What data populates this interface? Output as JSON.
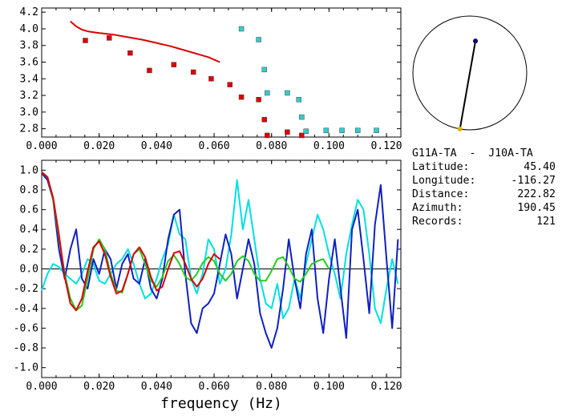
{
  "chart_data": [
    {
      "type": "scatter",
      "xlim": [
        0.0,
        0.125
      ],
      "ylim": [
        2.7,
        4.25
      ],
      "xticks": [
        "0.000",
        "0.020",
        "0.040",
        "0.060",
        "0.080",
        "0.100",
        "0.120"
      ],
      "yticks": [
        "2.8",
        "3.0",
        "3.2",
        "3.4",
        "3.6",
        "3.8",
        "4.0",
        "4.2"
      ],
      "series": [
        {
          "kind": "line",
          "color": "#dd0000",
          "x": [
            0.01,
            0.012,
            0.014,
            0.016,
            0.02,
            0.025,
            0.03,
            0.035,
            0.04,
            0.045,
            0.05,
            0.055,
            0.058,
            0.06,
            0.062
          ],
          "y": [
            4.09,
            4.03,
            3.99,
            3.97,
            3.95,
            3.93,
            3.9,
            3.87,
            3.83,
            3.79,
            3.74,
            3.69,
            3.66,
            3.63,
            3.6
          ]
        },
        {
          "kind": "points",
          "color": "#dd0000",
          "x": [
            0.0152,
            0.0235,
            0.0308,
            0.0375,
            0.046,
            0.0528,
            0.059,
            0.0655,
            0.0695,
            0.0755,
            0.0775,
            0.0785,
            0.0855,
            0.0905
          ],
          "y": [
            3.86,
            3.89,
            3.71,
            3.5,
            3.57,
            3.48,
            3.4,
            3.33,
            3.18,
            3.15,
            2.91,
            2.72,
            2.76,
            2.72
          ]
        },
        {
          "kind": "points",
          "color": "#33cccc",
          "x": [
            0.0695,
            0.0755,
            0.0775,
            0.0785,
            0.0855,
            0.0895,
            0.0905,
            0.092,
            0.099,
            0.1045,
            0.11,
            0.1165
          ],
          "y": [
            4.0,
            3.87,
            3.51,
            3.23,
            3.23,
            3.15,
            2.94,
            2.77,
            2.78,
            2.78,
            2.78,
            2.78
          ]
        }
      ]
    },
    {
      "type": "line",
      "xlim": [
        0.0,
        0.125
      ],
      "ylim": [
        -1.1,
        1.1
      ],
      "xlabel": "frequency (Hz)",
      "xticks": [
        "0.000",
        "0.020",
        "0.040",
        "0.060",
        "0.080",
        "0.100",
        "0.120"
      ],
      "yticks": [
        "1.0",
        "0.8",
        "0.6",
        "0.4",
        "0.2",
        "0.0",
        "-0.2",
        "-0.4",
        "-0.6",
        "-0.8",
        "-1.0"
      ],
      "series": [
        {
          "color": "#00e0e0",
          "x": [
            0.0,
            0.002,
            0.004,
            0.006,
            0.008,
            0.01,
            0.012,
            0.014,
            0.016,
            0.018,
            0.02,
            0.022,
            0.024,
            0.026,
            0.028,
            0.03,
            0.032,
            0.034,
            0.036,
            0.038,
            0.04,
            0.042,
            0.044,
            0.046,
            0.048,
            0.05,
            0.052,
            0.054,
            0.056,
            0.058,
            0.06,
            0.062,
            0.064,
            0.066,
            0.068,
            0.07,
            0.072,
            0.074,
            0.076,
            0.078,
            0.08,
            0.082,
            0.084,
            0.086,
            0.088,
            0.09,
            0.092,
            0.094,
            0.096,
            0.098,
            0.1,
            0.102,
            0.104,
            0.106,
            0.108,
            0.11,
            0.112,
            0.114,
            0.116,
            0.118,
            0.12,
            0.122,
            0.124
          ],
          "y": [
            -0.22,
            -0.05,
            0.05,
            0.02,
            -0.05,
            -0.1,
            -0.15,
            -0.05,
            0.1,
            0.05,
            -0.12,
            -0.15,
            -0.05,
            0.05,
            0.1,
            0.2,
            0.05,
            -0.15,
            -0.3,
            -0.25,
            -0.1,
            0.1,
            0.25,
            0.55,
            0.35,
            0.3,
            -0.1,
            -0.25,
            -0.05,
            0.3,
            0.2,
            -0.15,
            0.0,
            0.35,
            0.9,
            0.4,
            0.7,
            0.3,
            -0.1,
            -0.35,
            -0.4,
            -0.15,
            -0.5,
            -0.4,
            -0.1,
            -0.3,
            0.05,
            0.3,
            0.55,
            0.4,
            0.15,
            -0.05,
            -0.3,
            0.15,
            0.45,
            0.7,
            0.6,
            0.15,
            -0.4,
            -0.55,
            -0.2,
            0.1,
            -0.15
          ]
        },
        {
          "color": "#1020c0",
          "x": [
            0.0,
            0.002,
            0.004,
            0.006,
            0.008,
            0.01,
            0.012,
            0.014,
            0.016,
            0.018,
            0.02,
            0.022,
            0.024,
            0.026,
            0.028,
            0.03,
            0.032,
            0.034,
            0.036,
            0.038,
            0.04,
            0.042,
            0.044,
            0.046,
            0.048,
            0.05,
            0.052,
            0.054,
            0.056,
            0.058,
            0.06,
            0.062,
            0.064,
            0.066,
            0.068,
            0.07,
            0.072,
            0.074,
            0.076,
            0.078,
            0.08,
            0.082,
            0.084,
            0.086,
            0.088,
            0.09,
            0.092,
            0.094,
            0.096,
            0.098,
            0.1,
            0.102,
            0.104,
            0.106,
            0.108,
            0.11,
            0.112,
            0.114,
            0.116,
            0.118,
            0.12,
            0.122,
            0.124
          ],
          "y": [
            0.97,
            0.9,
            0.7,
            0.2,
            -0.1,
            0.2,
            0.4,
            -0.1,
            -0.2,
            0.1,
            -0.05,
            0.2,
            0.1,
            -0.2,
            0.05,
            0.15,
            -0.1,
            -0.15,
            0.1,
            -0.2,
            -0.3,
            -0.1,
            0.3,
            0.55,
            0.6,
            -0.05,
            -0.55,
            -0.65,
            -0.4,
            -0.35,
            -0.25,
            0.05,
            0.35,
            0.15,
            -0.3,
            0.0,
            0.3,
            0.05,
            -0.45,
            -0.65,
            -0.8,
            -0.6,
            -0.2,
            0.3,
            -0.1,
            -0.4,
            0.15,
            0.4,
            -0.3,
            -0.65,
            -0.1,
            0.3,
            -0.2,
            -0.7,
            0.4,
            0.6,
            0.1,
            -0.45,
            0.45,
            0.85,
            0.1,
            -0.6,
            0.3
          ]
        },
        {
          "color": "#22cc22",
          "x": [
            0.0,
            0.002,
            0.004,
            0.006,
            0.008,
            0.01,
            0.012,
            0.014,
            0.016,
            0.018,
            0.02,
            0.022,
            0.024,
            0.026,
            0.028,
            0.03,
            0.032,
            0.034,
            0.036,
            0.038,
            0.04,
            0.042,
            0.044,
            0.046,
            0.048,
            0.05,
            0.052,
            0.054,
            0.056,
            0.058,
            0.06,
            0.062,
            0.064,
            0.066,
            0.068,
            0.07,
            0.072,
            0.074,
            0.076,
            0.078,
            0.08,
            0.082,
            0.084,
            0.086,
            0.088,
            0.09,
            0.092,
            0.094,
            0.096,
            0.098,
            0.1
          ],
          "y": [
            0.98,
            0.93,
            0.7,
            0.32,
            -0.05,
            -0.3,
            -0.42,
            -0.37,
            -0.1,
            0.2,
            0.3,
            0.2,
            -0.05,
            -0.22,
            -0.24,
            -0.05,
            0.15,
            0.2,
            0.05,
            -0.12,
            -0.18,
            -0.08,
            0.08,
            0.14,
            0.05,
            -0.08,
            -0.12,
            -0.05,
            0.06,
            0.12,
            0.08,
            -0.05,
            -0.12,
            -0.05,
            0.08,
            0.13,
            0.08,
            -0.05,
            -0.12,
            -0.12,
            -0.02,
            0.1,
            0.12,
            0.02,
            -0.1,
            -0.13,
            -0.05,
            0.05,
            0.08,
            0.1,
            0.0
          ]
        },
        {
          "color": "#dd0000",
          "x": [
            0.0,
            0.002,
            0.004,
            0.006,
            0.008,
            0.01,
            0.012,
            0.014,
            0.016,
            0.018,
            0.02,
            0.022,
            0.024,
            0.026,
            0.028,
            0.03,
            0.032,
            0.034,
            0.036,
            0.038,
            0.04,
            0.042,
            0.044,
            0.046,
            0.048,
            0.05,
            0.052,
            0.054,
            0.056,
            0.058,
            0.06,
            0.062
          ],
          "y": [
            0.98,
            0.93,
            0.72,
            0.35,
            -0.08,
            -0.35,
            -0.42,
            -0.3,
            -0.02,
            0.22,
            0.28,
            0.15,
            -0.08,
            -0.25,
            -0.22,
            -0.05,
            0.15,
            0.22,
            0.12,
            -0.08,
            -0.22,
            -0.18,
            0.0,
            0.16,
            0.18,
            0.05,
            -0.1,
            -0.18,
            -0.1,
            0.05,
            0.15,
            0.1
          ]
        }
      ]
    }
  ],
  "map": {
    "station": {
      "bearing_deg": 10,
      "radius_frac": 0.57,
      "color": "#000066"
    },
    "event": {
      "bearing_deg": 190,
      "radius_frac": 1.0,
      "color": "#e0b000"
    }
  },
  "info": {
    "title": "G11A-TA  -  J10A-TA",
    "latitude_label": "Latitude:",
    "latitude": "45.40",
    "longitude_label": "Longitude:",
    "longitude": "-116.27",
    "distance_label": "Distance:",
    "distance": "222.82",
    "azimuth_label": "Azimuth:",
    "azimuth": "190.45",
    "records_label": "Records:",
    "records": "121"
  }
}
